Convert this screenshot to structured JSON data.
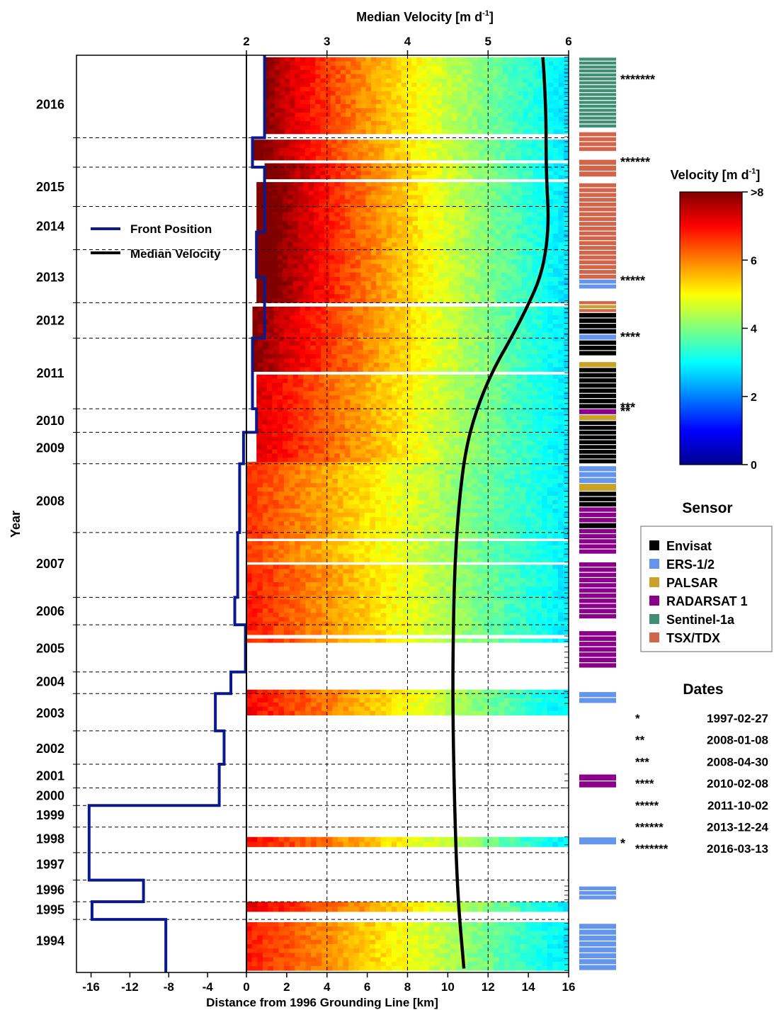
{
  "chart_data": {
    "type": "heatmap",
    "title": "",
    "xlabel": "Distance from 1996 Grounding Line [km]",
    "ylabel": "Year",
    "top_axis_label": "Median Velocity [m d",
    "top_axis_label_sup": "-1",
    "top_axis_label_end": "]",
    "x_ticks": [
      "-16",
      "-12",
      "-8",
      "-4",
      "0",
      "2",
      "4",
      "6",
      "8",
      "10",
      "12",
      "14",
      "16"
    ],
    "x_tick_values": [
      -16,
      -12,
      -8,
      -4,
      0,
      2,
      4,
      6,
      8,
      10,
      12,
      14,
      16
    ],
    "xlim": [
      -17.5,
      16
    ],
    "top_ticks": [
      "2",
      "3",
      "4",
      "5",
      "6"
    ],
    "top_xlim": [
      2,
      6
    ],
    "year_labels": [
      "1994",
      "1995",
      "1996",
      "1997",
      "1998",
      "1999",
      "2000",
      "2001",
      "2002",
      "2003",
      "2004",
      "2005",
      "2006",
      "2007",
      "2008",
      "2009",
      "2010",
      "2011",
      "2012",
      "2013",
      "2014",
      "2015",
      "2016"
    ],
    "ylim": [
      1993.5,
      2016.85
    ],
    "year_dividers": [
      1994.85,
      1995.3,
      1995.85,
      1996.55,
      1997.2,
      1997.75,
      1998.2,
      1998.8,
      1999.65,
      2000.6,
      2001.15,
      2002.35,
      2003.05,
      2004.7,
      2006.45,
      2007.25,
      2007.85,
      2009.65,
      2010.55,
      2011.9,
      2013.0,
      2014.0,
      2014.75
    ],
    "colorbar": {
      "title": "Velocity [m d",
      "title_sup": "-1",
      "title_end": "]",
      "ticks": [
        "0",
        "2",
        "4",
        "6",
        ">8"
      ],
      "range": [
        0,
        8
      ],
      "colormap": "jet",
      "colors": [
        "#00008f",
        "#0000ff",
        "#0080ff",
        "#00ffff",
        "#80ff80",
        "#ffff00",
        "#ff8000",
        "#ff0000",
        "#800000"
      ]
    },
    "front_position": {
      "name": "Front Position",
      "color": "#0a1a8c",
      "steps": [
        {
          "from": 1993.5,
          "to": 1994.85,
          "x": -8.3
        },
        {
          "from": 1994.85,
          "to": 1995.3,
          "x": -15.9
        },
        {
          "from": 1995.3,
          "to": 1995.85,
          "x": -10.6
        },
        {
          "from": 1995.85,
          "to": 1996.55,
          "x": -16.2
        },
        {
          "from": 1996.55,
          "to": 1997.2,
          "x": -16.2
        },
        {
          "from": 1997.2,
          "to": 1997.75,
          "x": -16.2
        },
        {
          "from": 1997.75,
          "to": 1998.8,
          "x": -2.8
        },
        {
          "from": 1998.8,
          "to": 1999.65,
          "x": -2.3
        },
        {
          "from": 1999.65,
          "to": 2000.6,
          "x": -3.2
        },
        {
          "from": 2000.6,
          "to": 2001.15,
          "x": -1.6
        },
        {
          "from": 2001.15,
          "to": 2002.35,
          "x": -0.1
        },
        {
          "from": 2002.35,
          "to": 2003.05,
          "x": -1.2
        },
        {
          "from": 2003.05,
          "to": 2004.7,
          "x": -0.9
        },
        {
          "from": 2004.7,
          "to": 2006.45,
          "x": -0.7
        },
        {
          "from": 2006.45,
          "to": 2007.25,
          "x": -0.3
        },
        {
          "from": 2007.25,
          "to": 2007.85,
          "x": 0.5
        },
        {
          "from": 2007.85,
          "to": 2009.65,
          "x": 0.3
        },
        {
          "from": 2009.65,
          "to": 2011.2,
          "x": 0.9
        },
        {
          "from": 2011.2,
          "to": 2012.35,
          "x": 0.5
        },
        {
          "from": 2012.35,
          "to": 2014.0,
          "x": 0.9
        },
        {
          "from": 2014.0,
          "to": 2014.75,
          "x": 0.3
        },
        {
          "from": 2014.75,
          "to": 2016.85,
          "x": 0.9
        }
      ]
    },
    "median_velocity": {
      "name": "Median Velocity",
      "color": "#000000",
      "points": [
        [
          4.7,
          1993.6
        ],
        [
          4.62,
          1995.5
        ],
        [
          4.58,
          1998.0
        ],
        [
          4.56,
          2000.5
        ],
        [
          4.57,
          2002.5
        ],
        [
          4.59,
          2004.0
        ],
        [
          4.64,
          2005.5
        ],
        [
          4.72,
          2006.8
        ],
        [
          4.85,
          2007.8
        ],
        [
          5.05,
          2008.8
        ],
        [
          5.3,
          2009.7
        ],
        [
          5.5,
          2010.5
        ],
        [
          5.65,
          2011.2
        ],
        [
          5.73,
          2012.0
        ],
        [
          5.75,
          2012.8
        ],
        [
          5.73,
          2013.5
        ],
        [
          5.72,
          2014.3
        ],
        [
          5.72,
          2015.2
        ],
        [
          5.7,
          2016.2
        ],
        [
          5.68,
          2016.8
        ]
      ]
    },
    "legend": [
      {
        "label": "Front Position",
        "color": "#0a1a8c"
      },
      {
        "label": "Median Velocity",
        "color": "#000000"
      }
    ],
    "sensor_legend": {
      "title": "Sensor",
      "entries": [
        {
          "label": "Envisat",
          "color": "#000000"
        },
        {
          "label": "ERS-1/2",
          "color": "#6495ed"
        },
        {
          "label": "PALSAR",
          "color": "#c9a227"
        },
        {
          "label": "RADARSAT 1",
          "color": "#8b008b"
        },
        {
          "label": "Sentinel-1a",
          "color": "#3f8f74"
        },
        {
          "label": "TSX/TDX",
          "color": "#d2644a"
        }
      ]
    },
    "sensor_blocks": [
      {
        "sensor": "ERS-1/2",
        "from": 1993.55,
        "to": 1994.75,
        "n": 8
      },
      {
        "sensor": "ERS-1/2",
        "from": 1995.35,
        "to": 1995.7,
        "n": 3
      },
      {
        "sensor": "ERS-1/2",
        "from": 1996.75,
        "to": 1996.95,
        "n": 1
      },
      {
        "sensor": "RADARSAT 1",
        "from": 1998.2,
        "to": 1998.55,
        "n": 2
      },
      {
        "sensor": "ERS-1/2",
        "from": 2000.35,
        "to": 2000.65,
        "n": 2
      },
      {
        "sensor": "RADARSAT 1",
        "from": 2001.25,
        "to": 2002.2,
        "n": 7
      },
      {
        "sensor": "RADARSAT 1",
        "from": 2002.5,
        "to": 2003.95,
        "n": 11
      },
      {
        "sensor": "RADARSAT 1",
        "from": 2004.15,
        "to": 2004.8,
        "n": 5
      },
      {
        "sensor": "Envisat",
        "from": 2004.8,
        "to": 2004.95,
        "n": 1
      },
      {
        "sensor": "RADARSAT 1",
        "from": 2004.95,
        "to": 2005.35,
        "n": 3
      },
      {
        "sensor": "Envisat",
        "from": 2005.35,
        "to": 2005.75,
        "n": 3
      },
      {
        "sensor": "PALSAR",
        "from": 2005.75,
        "to": 2005.95,
        "n": 1
      },
      {
        "sensor": "ERS-1/2",
        "from": 2005.95,
        "to": 2006.4,
        "n": 3
      },
      {
        "sensor": "Envisat",
        "from": 2006.45,
        "to": 2007.55,
        "n": 9
      },
      {
        "sensor": "PALSAR",
        "from": 2007.55,
        "to": 2007.7,
        "n": 1
      },
      {
        "sensor": "RADARSAT 1",
        "from": 2007.7,
        "to": 2007.85,
        "n": 1
      },
      {
        "sensor": "Envisat",
        "from": 2007.85,
        "to": 2008.9,
        "n": 8
      },
      {
        "sensor": "PALSAR",
        "from": 2008.9,
        "to": 2009.05,
        "n": 1
      },
      {
        "sensor": "Envisat",
        "from": 2009.2,
        "to": 2009.6,
        "n": 3
      },
      {
        "sensor": "ERS-1/2",
        "from": 2009.6,
        "to": 2009.75,
        "n": 1
      },
      {
        "sensor": "Envisat",
        "from": 2009.75,
        "to": 2010.3,
        "n": 4
      },
      {
        "sensor": "TSX/TDX",
        "from": 2010.3,
        "to": 2010.4,
        "n": 1
      },
      {
        "sensor": "PALSAR",
        "from": 2010.4,
        "to": 2010.5,
        "n": 1
      },
      {
        "sensor": "TSX/TDX",
        "from": 2010.5,
        "to": 2010.6,
        "n": 1
      },
      {
        "sensor": "ERS-1/2",
        "from": 2010.9,
        "to": 2011.15,
        "n": 2
      },
      {
        "sensor": "TSX/TDX",
        "from": 2011.15,
        "to": 2013.6,
        "n": 20
      },
      {
        "sensor": "TSX/TDX",
        "from": 2013.75,
        "to": 2014.2,
        "n": 3
      },
      {
        "sensor": "TSX/TDX",
        "from": 2014.4,
        "to": 2014.9,
        "n": 4
      },
      {
        "sensor": "Sentinel-1a",
        "from": 2015.0,
        "to": 2016.8,
        "n": 18
      }
    ],
    "stars": [
      {
        "mark": "*",
        "year": 1996.85,
        "pos": "right"
      },
      {
        "mark": "**",
        "year": 2007.85,
        "pos": "right"
      },
      {
        "mark": "***",
        "year": 2007.95,
        "pos": "right"
      },
      {
        "mark": "****",
        "year": 2009.75,
        "pos": "right"
      },
      {
        "mark": "*****",
        "year": 2011.18,
        "pos": "right"
      },
      {
        "mark": "******",
        "year": 2014.2,
        "pos": "right"
      },
      {
        "mark": "*******",
        "year": 2016.3,
        "pos": "right"
      }
    ],
    "dates_legend": {
      "title": "Dates",
      "entries": [
        {
          "mark": "*",
          "date": "1997-02-27"
        },
        {
          "mark": "**",
          "date": "2008-01-08"
        },
        {
          "mark": "***",
          "date": "2008-04-30"
        },
        {
          "mark": "****",
          "date": "2010-02-08"
        },
        {
          "mark": "*****",
          "date": "2011-10-02"
        },
        {
          "mark": "******",
          "date": "2013-12-24"
        },
        {
          "mark": "*******",
          "date": "2016-03-13"
        }
      ]
    },
    "data_gaps": [
      [
        1994.78,
        1995.05
      ],
      [
        1995.3,
        1996.6
      ],
      [
        1996.6,
        1996.7
      ],
      [
        1996.95,
        2000.05
      ],
      [
        2000.7,
        2001.9
      ],
      [
        2002.0,
        2002.1
      ],
      [
        2003.88,
        2003.95
      ],
      [
        2004.48,
        2004.55
      ],
      [
        2008.72,
        2008.8
      ],
      [
        2010.45,
        2010.55
      ],
      [
        2013.62,
        2013.7
      ],
      [
        2014.1,
        2014.18
      ],
      [
        2014.7,
        2014.85
      ]
    ],
    "velocity_bands": [
      {
        "from": 1993.55,
        "to": 1994.78,
        "max": 6.8,
        "decay": 0.55
      },
      {
        "from": 1995.05,
        "to": 1995.3,
        "max": 7.2,
        "decay": 0.6
      },
      {
        "from": 1996.7,
        "to": 1996.95,
        "max": 7.0,
        "decay": 0.55
      },
      {
        "from": 2000.05,
        "to": 2000.7,
        "max": 7.0,
        "decay": 0.55
      },
      {
        "from": 2001.9,
        "to": 2002.0,
        "max": 6.8,
        "decay": 0.55
      },
      {
        "from": 2002.1,
        "to": 2003.88,
        "max": 6.8,
        "decay": 0.5
      },
      {
        "from": 2003.95,
        "to": 2004.48,
        "max": 6.5,
        "decay": 0.5
      },
      {
        "from": 2004.55,
        "to": 2006.5,
        "max": 6.6,
        "decay": 0.5
      },
      {
        "from": 2006.5,
        "to": 2008.72,
        "max": 7.3,
        "decay": 0.45
      },
      {
        "from": 2008.8,
        "to": 2010.45,
        "max": 8.0,
        "decay": 0.4
      },
      {
        "from": 2010.55,
        "to": 2013.62,
        "max": 8.6,
        "decay": 0.3
      },
      {
        "from": 2013.7,
        "to": 2014.1,
        "max": 8.5,
        "decay": 0.3
      },
      {
        "from": 2014.18,
        "to": 2014.7,
        "max": 8.3,
        "decay": 0.3
      },
      {
        "from": 2014.85,
        "to": 2016.8,
        "max": 8.0,
        "decay": 0.3
      }
    ]
  }
}
